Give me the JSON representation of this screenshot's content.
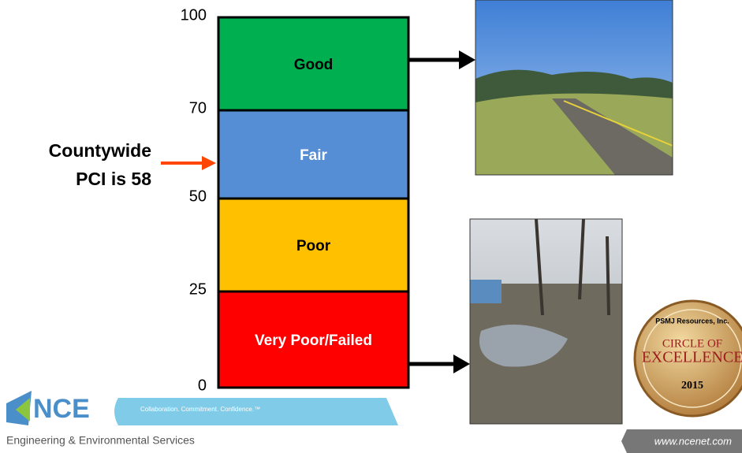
{
  "scale": {
    "ticks": [
      "100",
      "70",
      "50",
      "25",
      "0"
    ],
    "bands": [
      {
        "label": "Good",
        "color": "#00b050",
        "text_color": "#000000"
      },
      {
        "label": "Fair",
        "color": "#558ed5",
        "text_color": "#ffffff"
      },
      {
        "label": "Poor",
        "color": "#ffc000",
        "text_color": "#000000"
      },
      {
        "label": "Very Poor/Failed",
        "color": "#ff0000",
        "text_color": "#ffffff"
      }
    ]
  },
  "indicator": {
    "lines": [
      "Countywide",
      "PCI is 58"
    ],
    "arrow_color": "#ff4500"
  },
  "logo": {
    "name": "NCE",
    "tagline": "Collaboration. Commitment. Confidence.™",
    "subtitle": "Engineering & Environmental Services"
  },
  "badge": {
    "issuer": "PSMJ Resources, Inc.",
    "line1": "CIRCLE OF",
    "line2": "EXCELLENCE",
    "year": "2015"
  },
  "footer": {
    "url": "www.ncenet.com"
  }
}
